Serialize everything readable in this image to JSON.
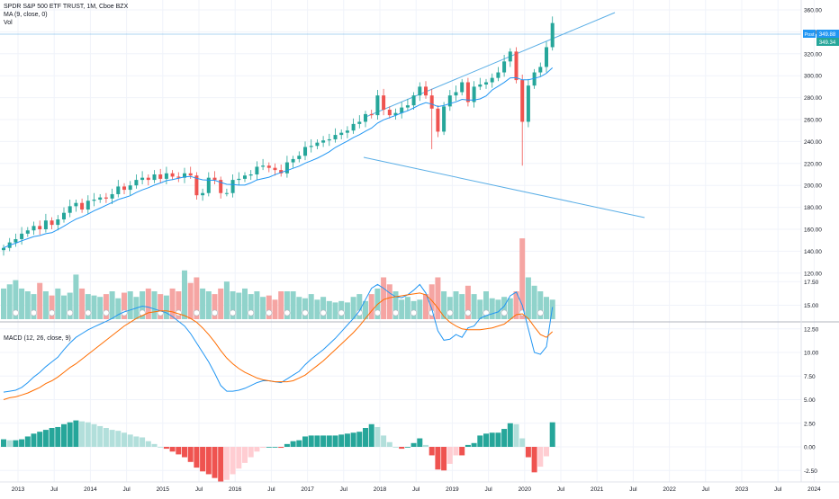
{
  "header": {
    "symbol_title": "SPDR S&P 500 ETF TRUST, 1M, Cboe BZX",
    "ma_label": "MA (9, close, 0)",
    "vol_label": "Vol"
  },
  "macd_label": "MACD (12, 26, close, 9)",
  "price_tags": {
    "post_label": "Post",
    "post_value": "349.88",
    "close_value": "349.34"
  },
  "colors": {
    "up": "#26a69a",
    "down": "#ef5350",
    "vol_up": "#90d3cb",
    "vol_down": "#f5a5a3",
    "ma": "#2196f3",
    "macd_line": "#2196f3",
    "signal_line": "#ff6d00",
    "channel": "#5aaee6",
    "grid": "#f0f3fa",
    "tag": "#2196f3"
  },
  "chart_data": [
    {
      "type": "candlestick",
      "title": "SPDR S&P 500 ETF TRUST, 1M, Cboe BZX",
      "x_ticks": [
        "2013",
        "Jul",
        "2014",
        "Jul",
        "2015",
        "Jul",
        "2016",
        "Jul",
        "2017",
        "Jul",
        "2018",
        "Jul",
        "2019",
        "Jul",
        "2020",
        "Jul",
        "2021",
        "Jul",
        "2022",
        "Jul",
        "2023",
        "Jul",
        "2024"
      ],
      "y_ticks": [
        "360.00",
        "340.00",
        "320.00",
        "300.00",
        "280.00",
        "260.00",
        "240.00",
        "220.00",
        "200.00",
        "180.00",
        "160.00",
        "140.00",
        "120.00"
      ],
      "ylim": [
        112,
        368
      ],
      "close": [
        143,
        148,
        151,
        156,
        159,
        163,
        160,
        168,
        164,
        169,
        175,
        181,
        184,
        178,
        186,
        187,
        189,
        188,
        192,
        199,
        196,
        200,
        205,
        207,
        205,
        210,
        206,
        211,
        208,
        207,
        211,
        209,
        191,
        193,
        207,
        205,
        193,
        193,
        205,
        206,
        209,
        210,
        217,
        218,
        216,
        214,
        211,
        221,
        224,
        227,
        235,
        236,
        239,
        241,
        242,
        246,
        248,
        250,
        256,
        258,
        265,
        264,
        282,
        269,
        264,
        266,
        271,
        273,
        282,
        290,
        282,
        270,
        249,
        272,
        282,
        285,
        294,
        276,
        290,
        292,
        294,
        298,
        303,
        313,
        322,
        296,
        258,
        291,
        303,
        308,
        326,
        348
      ],
      "volume_scale": "relative",
      "volume": [
        0.22,
        0.25,
        0.28,
        0.22,
        0.2,
        0.18,
        0.26,
        0.2,
        0.17,
        0.22,
        0.17,
        0.19,
        0.32,
        0.22,
        0.18,
        0.17,
        0.16,
        0.18,
        0.2,
        0.15,
        0.19,
        0.2,
        0.16,
        0.2,
        0.22,
        0.2,
        0.18,
        0.17,
        0.22,
        0.2,
        0.35,
        0.26,
        0.3,
        0.22,
        0.2,
        0.18,
        0.22,
        0.27,
        0.2,
        0.19,
        0.22,
        0.18,
        0.2,
        0.16,
        0.17,
        0.14,
        0.2,
        0.2,
        0.2,
        0.16,
        0.15,
        0.18,
        0.14,
        0.16,
        0.13,
        0.12,
        0.13,
        0.12,
        0.16,
        0.18,
        0.13,
        0.18,
        0.22,
        0.3,
        0.25,
        0.2,
        0.14,
        0.16,
        0.13,
        0.14,
        0.18,
        0.25,
        0.3,
        0.2,
        0.16,
        0.2,
        0.18,
        0.24,
        0.18,
        0.14,
        0.2,
        0.15,
        0.14,
        0.16,
        0.15,
        0.2,
        0.58,
        0.3,
        0.24,
        0.2,
        0.16,
        0.14
      ],
      "ma_period": 9
    },
    {
      "type": "line",
      "title": "MACD (12, 26, close, 9)",
      "y_ticks": [
        "17.50",
        "15.00",
        "12.50",
        "10.00",
        "7.50",
        "5.00",
        "2.50",
        "0.00",
        "-2.50"
      ],
      "ylim": [
        -4.2,
        19.2
      ],
      "series": [
        {
          "role": "macd",
          "values": [
            5.8,
            5.9,
            6.0,
            6.3,
            6.8,
            7.4,
            7.9,
            8.5,
            9.0,
            9.5,
            10.3,
            11.0,
            11.6,
            12.0,
            12.4,
            12.7,
            13.0,
            13.3,
            13.6,
            14.0,
            14.3,
            14.5,
            14.7,
            14.9,
            14.8,
            14.6,
            14.4,
            14.2,
            13.8,
            13.3,
            12.8,
            12.0,
            11.0,
            10.0,
            9.0,
            7.8,
            6.5,
            5.9,
            5.9,
            6.0,
            6.2,
            6.5,
            6.8,
            7.0,
            7.0,
            6.9,
            6.8,
            7.2,
            7.6,
            8.0,
            8.7,
            9.3,
            9.8,
            10.3,
            10.9,
            11.5,
            12.2,
            12.9,
            13.6,
            14.4,
            15.6,
            16.8,
            17.2,
            16.8,
            16.3,
            15.9,
            15.8,
            16.1,
            16.6,
            17.2,
            16.3,
            14.6,
            12.3,
            11.3,
            11.4,
            11.9,
            11.6,
            12.6,
            12.8,
            13.6,
            13.9,
            14.1,
            14.3,
            14.9,
            16.0,
            16.4,
            15.0,
            12.5,
            10.0,
            9.8,
            10.6,
            14.8
          ]
        },
        {
          "role": "signal",
          "values": [
            5.0,
            5.2,
            5.3,
            5.5,
            5.7,
            6.0,
            6.3,
            6.7,
            7.0,
            7.4,
            7.9,
            8.4,
            8.8,
            9.3,
            9.8,
            10.3,
            10.8,
            11.3,
            11.8,
            12.3,
            12.8,
            13.2,
            13.6,
            13.9,
            14.2,
            14.3,
            14.4,
            14.4,
            14.3,
            14.1,
            13.9,
            13.6,
            13.2,
            12.6,
            11.9,
            11.1,
            10.2,
            9.4,
            8.8,
            8.3,
            7.9,
            7.6,
            7.3,
            7.1,
            7.0,
            6.9,
            6.9,
            6.9,
            7.0,
            7.3,
            7.6,
            8.1,
            8.6,
            9.1,
            9.7,
            10.3,
            10.9,
            11.5,
            12.1,
            12.8,
            13.6,
            14.4,
            15.1,
            15.6,
            15.8,
            15.9,
            16.0,
            16.1,
            16.2,
            16.3,
            16.1,
            15.5,
            14.7,
            13.8,
            13.2,
            12.8,
            12.5,
            12.4,
            12.4,
            12.4,
            12.5,
            12.6,
            12.8,
            13.0,
            13.5,
            14.0,
            14.1,
            13.6,
            12.7,
            11.9,
            11.6,
            12.2
          ]
        },
        {
          "role": "histogram",
          "values": [
            0.8,
            0.7,
            0.7,
            0.8,
            1.1,
            1.4,
            1.6,
            1.8,
            2.0,
            2.1,
            2.4,
            2.6,
            2.8,
            2.7,
            2.6,
            2.4,
            2.2,
            2.0,
            1.8,
            1.7,
            1.5,
            1.3,
            1.1,
            1.0,
            0.6,
            0.3,
            0.0,
            -0.2,
            -0.5,
            -0.8,
            -1.1,
            -1.6,
            -2.2,
            -2.6,
            -2.9,
            -3.3,
            -3.7,
            -3.5,
            -2.9,
            -2.3,
            -1.7,
            -1.1,
            -0.5,
            -0.1,
            0.0,
            0.0,
            -0.1,
            0.3,
            0.6,
            0.7,
            1.1,
            1.2,
            1.2,
            1.2,
            1.2,
            1.2,
            1.3,
            1.4,
            1.5,
            1.6,
            2.0,
            2.4,
            2.1,
            1.2,
            0.5,
            0.0,
            -0.2,
            0.0,
            0.4,
            0.9,
            0.2,
            -0.9,
            -2.4,
            -2.5,
            -1.8,
            -0.9,
            -0.9,
            0.2,
            0.4,
            1.2,
            1.4,
            1.5,
            1.5,
            1.9,
            2.5,
            2.4,
            0.9,
            -1.1,
            -2.7,
            -2.1,
            -1.0,
            2.6
          ]
        }
      ]
    }
  ]
}
